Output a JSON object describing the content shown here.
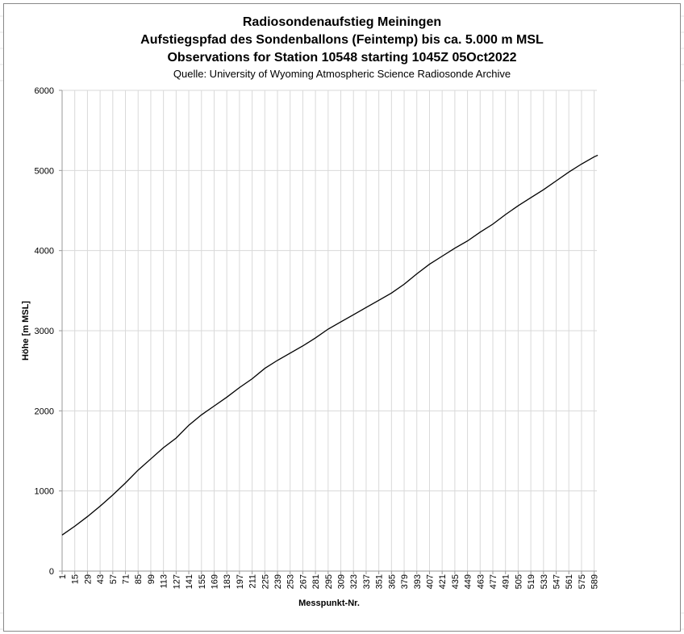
{
  "chart_data": {
    "type": "line",
    "title": "Radiosondenaufstieg Meiningen",
    "subtitle": "Aufstiegspfad des Sondenballons (Feintemp) bis ca. 5.000 m MSL",
    "subtitle2": "Observations for Station 10548 starting 1045Z 05Oct2022",
    "source": "Quelle: University of Wyoming Atmospheric Science Radiosonde Archive",
    "x_label": "Messpunkt-Nr.",
    "y_label": "Höhe [m MSL]",
    "x": [
      1,
      15,
      29,
      43,
      57,
      71,
      85,
      99,
      113,
      127,
      141,
      155,
      169,
      183,
      197,
      211,
      225,
      239,
      253,
      267,
      281,
      295,
      309,
      323,
      337,
      351,
      365,
      379,
      393,
      407,
      421,
      435,
      449,
      463,
      477,
      491,
      505,
      519,
      533,
      547,
      561,
      575,
      589,
      593
    ],
    "series": [
      {
        "name": "Höhe",
        "color": "#000000",
        "values": [
          450,
          560,
          680,
          810,
          950,
          1100,
          1260,
          1400,
          1540,
          1660,
          1820,
          1950,
          2060,
          2170,
          2290,
          2400,
          2530,
          2630,
          2720,
          2810,
          2910,
          3020,
          3110,
          3200,
          3290,
          3380,
          3470,
          3580,
          3710,
          3830,
          3930,
          4030,
          4120,
          4230,
          4330,
          4450,
          4560,
          4660,
          4760,
          4870,
          4980,
          5080,
          5170,
          5190
        ]
      }
    ],
    "xlim": [
      1,
      592
    ],
    "xticks": [
      1,
      15,
      29,
      43,
      57,
      71,
      85,
      99,
      113,
      127,
      141,
      155,
      169,
      183,
      197,
      211,
      225,
      239,
      253,
      267,
      281,
      295,
      309,
      323,
      337,
      351,
      365,
      379,
      393,
      407,
      421,
      435,
      449,
      463,
      477,
      491,
      505,
      519,
      533,
      547,
      561,
      575,
      589
    ],
    "ylim": [
      0,
      6000
    ],
    "yticks": [
      0,
      1000,
      2000,
      3000,
      4000,
      5000,
      6000
    ],
    "grid": true
  }
}
